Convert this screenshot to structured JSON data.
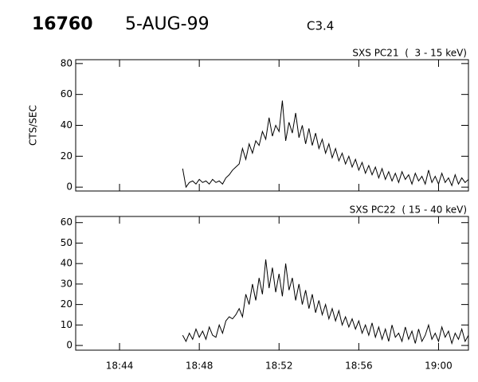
{
  "header": {
    "id": "16760",
    "date": "5-AUG-99",
    "class": "C3.4"
  },
  "chart_data": [
    {
      "type": "line",
      "title": "SXS PC21  (  3 - 15 keV)",
      "ylabel": "CTS/SEC",
      "color": "#000000",
      "xlim": [
        "18:41:48",
        "19:01:30"
      ],
      "ylim": [
        -2.5,
        82.5
      ],
      "yticks": [
        0,
        20,
        40,
        60,
        80
      ],
      "x": [
        "18:47:10",
        "18:47:20",
        "18:47:30",
        "18:47:40",
        "18:47:50",
        "18:48:00",
        "18:48:10",
        "18:48:20",
        "18:48:30",
        "18:48:40",
        "18:48:50",
        "18:49:00",
        "18:49:10",
        "18:49:20",
        "18:49:30",
        "18:49:40",
        "18:49:50",
        "18:50:00",
        "18:50:10",
        "18:50:20",
        "18:50:30",
        "18:50:40",
        "18:50:50",
        "18:51:00",
        "18:51:10",
        "18:51:20",
        "18:51:30",
        "18:51:40",
        "18:51:50",
        "18:52:00",
        "18:52:10",
        "18:52:20",
        "18:52:30",
        "18:52:40",
        "18:52:50",
        "18:53:00",
        "18:53:10",
        "18:53:20",
        "18:53:30",
        "18:53:40",
        "18:53:50",
        "18:54:00",
        "18:54:10",
        "18:54:20",
        "18:54:30",
        "18:54:40",
        "18:54:50",
        "18:55:00",
        "18:55:10",
        "18:55:20",
        "18:55:30",
        "18:55:40",
        "18:55:50",
        "18:56:00",
        "18:56:10",
        "18:56:20",
        "18:56:30",
        "18:56:40",
        "18:56:50",
        "18:57:00",
        "18:57:10",
        "18:57:20",
        "18:57:30",
        "18:57:40",
        "18:57:50",
        "18:58:00",
        "18:58:10",
        "18:58:20",
        "18:58:30",
        "18:58:40",
        "18:58:50",
        "18:59:00",
        "18:59:10",
        "18:59:20",
        "18:59:30",
        "18:59:40",
        "18:59:50",
        "19:00:00",
        "19:00:10",
        "19:00:20",
        "19:00:30",
        "19:00:40",
        "19:00:50",
        "19:01:00",
        "19:01:10",
        "19:01:20",
        "19:01:30"
      ],
      "values": [
        12,
        0,
        3,
        4,
        2,
        5,
        3,
        4,
        2,
        5,
        3,
        4,
        2,
        6,
        8,
        11,
        13,
        15,
        25,
        18,
        28,
        22,
        30,
        27,
        36,
        31,
        45,
        33,
        40,
        36,
        56,
        30,
        42,
        35,
        48,
        32,
        40,
        28,
        38,
        27,
        35,
        25,
        31,
        22,
        28,
        19,
        25,
        17,
        22,
        15,
        20,
        13,
        18,
        11,
        16,
        9,
        14,
        8,
        13,
        6,
        12,
        5,
        10,
        4,
        9,
        3,
        10,
        5,
        8,
        2,
        9,
        4,
        7,
        2,
        11,
        3,
        7,
        2,
        9,
        3,
        6,
        1,
        8,
        2,
        6,
        3,
        5
      ]
    },
    {
      "type": "line",
      "title": "SXS PC22  ( 15 - 40 keV)",
      "color": "#000000",
      "xlim": [
        "18:41:48",
        "19:01:30"
      ],
      "ylim": [
        -2.3,
        63
      ],
      "yticks": [
        0,
        10,
        20,
        30,
        40,
        50,
        60
      ],
      "xticks": [
        "18:44",
        "18:48",
        "18:52",
        "18:56",
        "19:00"
      ],
      "x": [
        "18:47:10",
        "18:47:20",
        "18:47:30",
        "18:47:40",
        "18:47:50",
        "18:48:00",
        "18:48:10",
        "18:48:20",
        "18:48:30",
        "18:48:40",
        "18:48:50",
        "18:49:00",
        "18:49:10",
        "18:49:20",
        "18:49:30",
        "18:49:40",
        "18:49:50",
        "18:50:00",
        "18:50:10",
        "18:50:20",
        "18:50:30",
        "18:50:40",
        "18:50:50",
        "18:51:00",
        "18:51:10",
        "18:51:20",
        "18:51:30",
        "18:51:40",
        "18:51:50",
        "18:52:00",
        "18:52:10",
        "18:52:20",
        "18:52:30",
        "18:52:40",
        "18:52:50",
        "18:53:00",
        "18:53:10",
        "18:53:20",
        "18:53:30",
        "18:53:40",
        "18:53:50",
        "18:54:00",
        "18:54:10",
        "18:54:20",
        "18:54:30",
        "18:54:40",
        "18:54:50",
        "18:55:00",
        "18:55:10",
        "18:55:20",
        "18:55:30",
        "18:55:40",
        "18:55:50",
        "18:56:00",
        "18:56:10",
        "18:56:20",
        "18:56:30",
        "18:56:40",
        "18:56:50",
        "18:57:00",
        "18:57:10",
        "18:57:20",
        "18:57:30",
        "18:57:40",
        "18:57:50",
        "18:58:00",
        "18:58:10",
        "18:58:20",
        "18:58:30",
        "18:58:40",
        "18:58:50",
        "18:59:00",
        "18:59:10",
        "18:59:20",
        "18:59:30",
        "18:59:40",
        "18:59:50",
        "19:00:00",
        "19:00:10",
        "19:00:20",
        "19:00:30",
        "19:00:40",
        "19:00:50",
        "19:01:00",
        "19:01:10",
        "19:01:20",
        "19:01:30"
      ],
      "values": [
        5,
        2,
        6,
        3,
        8,
        4,
        7,
        3,
        9,
        5,
        4,
        10,
        6,
        12,
        14,
        13,
        15,
        18,
        14,
        25,
        20,
        30,
        22,
        33,
        25,
        42,
        28,
        38,
        26,
        35,
        24,
        40,
        27,
        33,
        22,
        30,
        20,
        27,
        18,
        25,
        16,
        22,
        15,
        20,
        13,
        18,
        12,
        17,
        10,
        14,
        9,
        13,
        8,
        12,
        6,
        10,
        5,
        11,
        4,
        9,
        3,
        8,
        2,
        10,
        4,
        6,
        2,
        9,
        3,
        7,
        1,
        8,
        2,
        5,
        10,
        3,
        6,
        2,
        9,
        4,
        7,
        1,
        6,
        3,
        8,
        2,
        5
      ]
    }
  ]
}
